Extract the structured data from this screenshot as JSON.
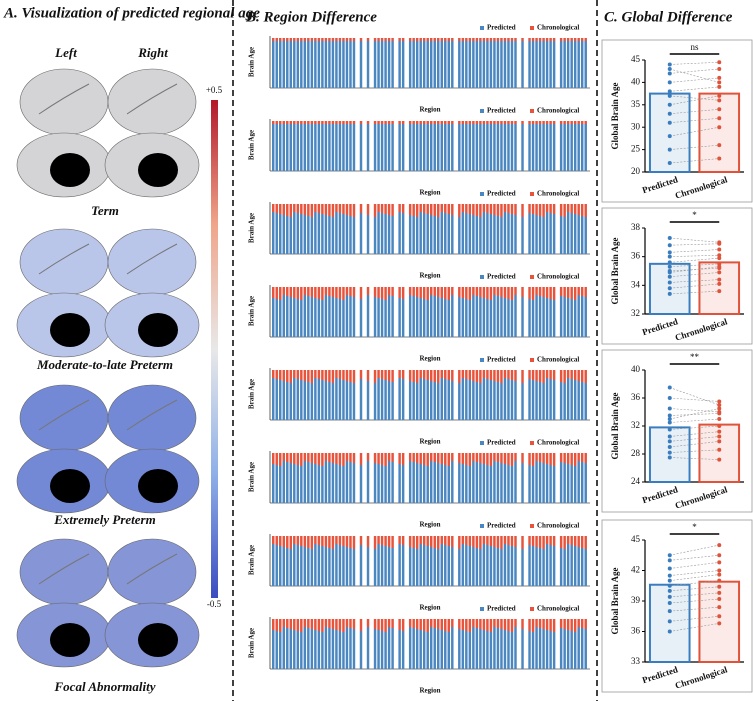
{
  "panel_a": {
    "title": "A. Visualization of predicted regional age",
    "left": "Left",
    "right": "Right",
    "colorbar_max": "+0.5",
    "colorbar_min": "-0.5",
    "groups": [
      {
        "label": "Term",
        "color": "#d4d4d6"
      },
      {
        "label": "Moderate-to-late Preterm",
        "color": "#b9c6ea"
      },
      {
        "label": "Extremely Preterm",
        "color": "#7389d6"
      },
      {
        "label": "Focal Abnormality",
        "color": "#8595d6"
      }
    ]
  },
  "panel_b": {
    "title": "B. Region Difference",
    "y_label": "Brain Age",
    "x_label": "Region",
    "legend": [
      {
        "name": "Predicted",
        "color": "#4a86c0"
      },
      {
        "name": "Chronological",
        "color": "#e8533c"
      }
    ],
    "charts": 8
  },
  "panel_c": {
    "title": "C. Global Difference"
  },
  "chart_data": [
    {
      "type": "paired-bar",
      "y_label": "Global Brain Age",
      "categories": [
        "Predicted",
        "Chronological"
      ],
      "colors": [
        "#3a7dbf",
        "#e0533b"
      ],
      "values": [
        37.5,
        37.5
      ],
      "annotation": "ns",
      "ylim": [
        20,
        45
      ],
      "yticks": [
        20,
        25,
        30,
        35,
        40,
        45
      ],
      "pairs": [
        [
          44,
          44.5
        ],
        [
          42,
          43
        ],
        [
          40,
          41
        ],
        [
          38,
          39
        ],
        [
          37,
          36
        ],
        [
          35,
          37
        ],
        [
          33,
          34
        ],
        [
          31,
          32
        ],
        [
          28,
          30
        ],
        [
          25,
          26
        ],
        [
          22,
          23
        ],
        [
          43,
          40
        ]
      ]
    },
    {
      "type": "paired-bar",
      "y_label": "Global Brain Age",
      "categories": [
        "Predicted",
        "Chronological"
      ],
      "colors": [
        "#3a7dbf",
        "#e0533b"
      ],
      "values": [
        35.5,
        35.6
      ],
      "annotation": "*",
      "ylim": [
        32,
        38
      ],
      "yticks": [
        32,
        34,
        36,
        38
      ],
      "pairs": [
        [
          37.3,
          37
        ],
        [
          36.8,
          36.9
        ],
        [
          36.3,
          36.5
        ],
        [
          36,
          36.1
        ],
        [
          35.6,
          35.9
        ],
        [
          35.3,
          35.5
        ],
        [
          35,
          35.2
        ],
        [
          34.6,
          34.9
        ],
        [
          34.2,
          34.4
        ],
        [
          33.8,
          34.1
        ],
        [
          33.4,
          33.6
        ],
        [
          34.9,
          35.3
        ]
      ]
    },
    {
      "type": "paired-bar",
      "y_label": "Global Brain Age",
      "categories": [
        "Predicted",
        "Chronological"
      ],
      "colors": [
        "#3a7dbf",
        "#e0533b"
      ],
      "values": [
        31.8,
        32.2
      ],
      "annotation": "**",
      "ylim": [
        24,
        40
      ],
      "yticks": [
        24,
        28,
        32,
        36,
        40
      ],
      "pairs": [
        [
          37.5,
          35
        ],
        [
          36,
          35.5
        ],
        [
          34.5,
          34
        ],
        [
          33.5,
          33.8
        ],
        [
          32.5,
          33
        ],
        [
          31.5,
          32
        ],
        [
          30.5,
          31.2
        ],
        [
          29.8,
          30.5
        ],
        [
          29,
          29.8
        ],
        [
          28.2,
          28.6
        ],
        [
          27.5,
          27.2
        ],
        [
          33,
          34.5
        ]
      ]
    },
    {
      "type": "paired-bar",
      "y_label": "Global Brain Age",
      "categories": [
        "Predicted",
        "Chronological"
      ],
      "colors": [
        "#3a7dbf",
        "#e0533b"
      ],
      "values": [
        40.6,
        40.9
      ],
      "annotation": "*",
      "ylim": [
        33,
        45
      ],
      "yticks": [
        33,
        36,
        39,
        42,
        45
      ],
      "pairs": [
        [
          43.5,
          44.5
        ],
        [
          43,
          43.5
        ],
        [
          42.2,
          42.8
        ],
        [
          41.5,
          42
        ],
        [
          41,
          41.6
        ],
        [
          40.5,
          41
        ],
        [
          40,
          40.4
        ],
        [
          39.4,
          39.8
        ],
        [
          38.8,
          39.2
        ],
        [
          38,
          38.4
        ],
        [
          37,
          37.5
        ],
        [
          36,
          36.8
        ]
      ]
    }
  ]
}
